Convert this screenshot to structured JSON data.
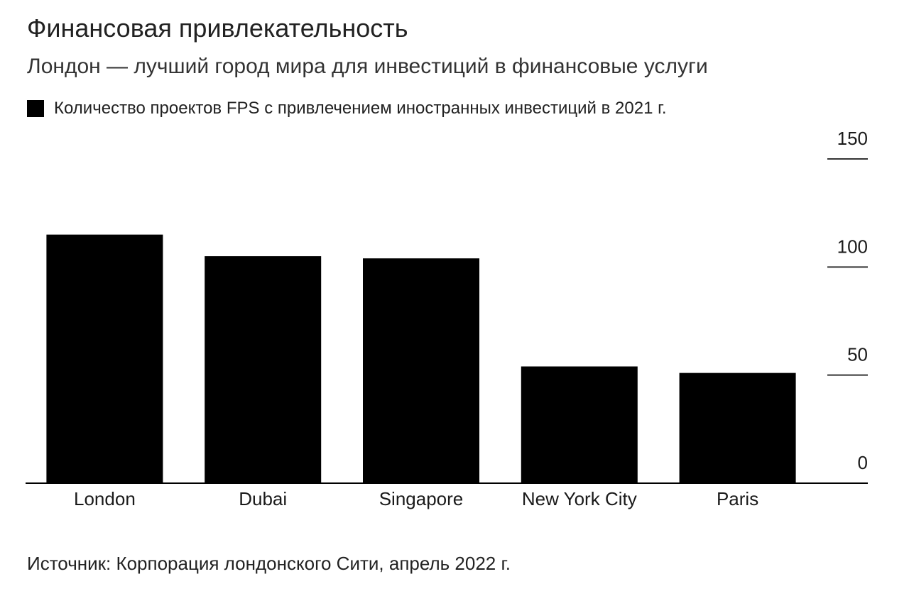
{
  "chart_data": {
    "type": "bar",
    "title": "Финансовая привлекательность",
    "subtitle": "Лондон — лучший город мира для инвестиций в финансовые услуги",
    "legend": [
      {
        "label": "Количество проектов FPS с привлечением иностранных инвестиций в 2021 г.",
        "color": "#000000"
      }
    ],
    "legend_position": "top-left",
    "categories": [
      "London",
      "Dubai",
      "Singapore",
      "New York City",
      "Paris"
    ],
    "series": [
      {
        "values": [
          115,
          105,
          104,
          54,
          51
        ]
      }
    ],
    "ylim": [
      0,
      150
    ],
    "yticks": [
      {
        "value": 0,
        "label": "0"
      },
      {
        "value": 50,
        "label": "50"
      },
      {
        "value": 100,
        "label": "100"
      },
      {
        "value": 150,
        "label": "150"
      }
    ],
    "y_axis_side": "right",
    "grid": false,
    "source": "Источник: Корпорация лондонского Сити, апрель 2022 г.",
    "bar_color": "#000000"
  }
}
